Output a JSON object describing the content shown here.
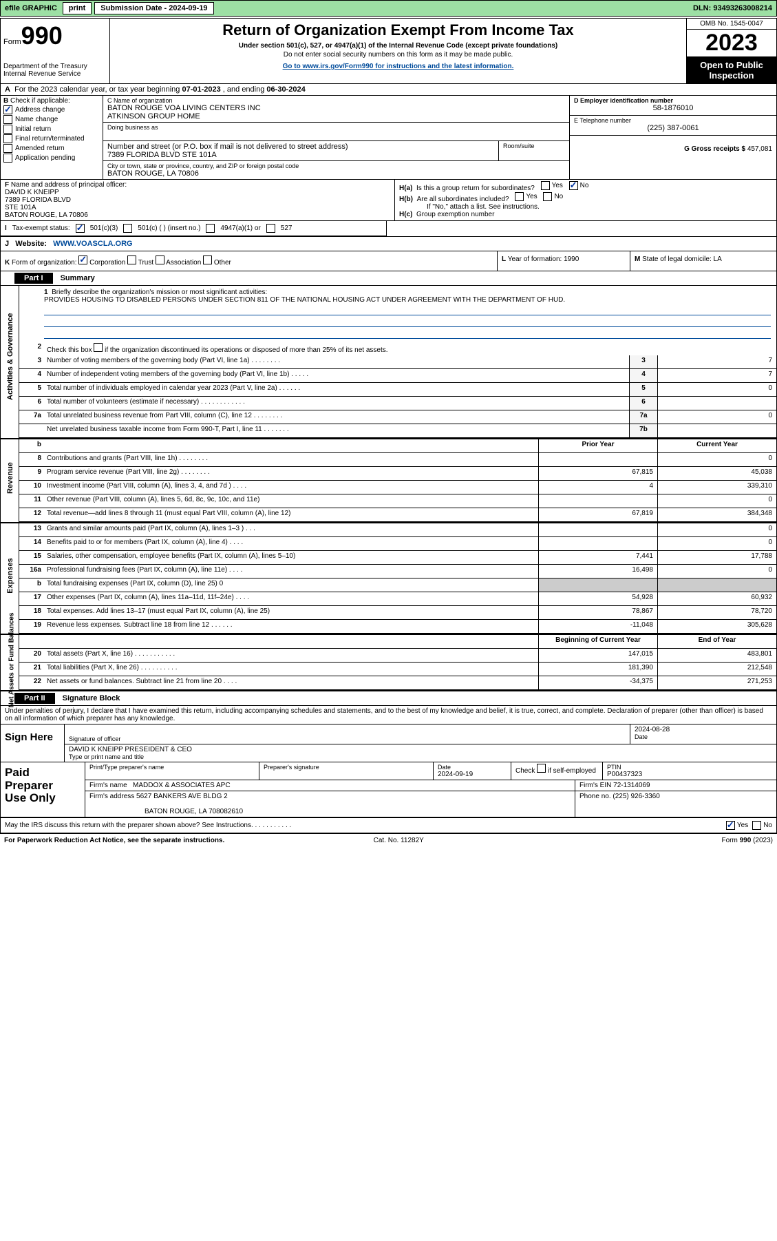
{
  "topbar": {
    "efile": "efile GRAPHIC",
    "print": "print",
    "subdate_lbl": "Submission Date - ",
    "subdate": "2024-09-19",
    "dln_lbl": "DLN: ",
    "dln": "93493263008214"
  },
  "header": {
    "form_lbl": "Form",
    "form_num": "990",
    "dept": "Department of the Treasury\nInternal Revenue Service",
    "title": "Return of Organization Exempt From Income Tax",
    "sub": "Under section 501(c), 527, or 4947(a)(1) of the Internal Revenue Code (except private foundations)",
    "sub2": "Do not enter social security numbers on this form as it may be made public.",
    "link_pre": "Go to ",
    "link": "www.irs.gov/Form990",
    "link_post": " for instructions and the latest information.",
    "omb": "OMB No. 1545-0047",
    "year": "2023",
    "inspect": "Open to Public Inspection"
  },
  "lineA": {
    "label_a": "A",
    "text": "For the 2023 calendar year, or tax year beginning ",
    "begin": "07-01-2023",
    "mid": " , and ending ",
    "end": "06-30-2024"
  },
  "colB": {
    "label": "B",
    "check_lbl": "Check if applicable:",
    "items": [
      {
        "label": "Address change",
        "checked": true
      },
      {
        "label": "Name change",
        "checked": false
      },
      {
        "label": "Initial return",
        "checked": false
      },
      {
        "label": "Final return/terminated",
        "checked": false
      },
      {
        "label": "Amended return",
        "checked": false
      },
      {
        "label": "Application pending",
        "checked": false
      }
    ]
  },
  "colC": {
    "name_lbl": "C Name of organization",
    "name1": "BATON ROUGE VOA LIVING CENTERS INC",
    "name2": "ATKINSON GROUP HOME",
    "dba_lbl": "Doing business as",
    "addr_lbl": "Number and street (or P.O. box if mail is not delivered to street address)",
    "addr": "7389 FLORIDA BLVD STE 101A",
    "room_lbl": "Room/suite",
    "city_lbl": "City or town, state or province, country, and ZIP or foreign postal code",
    "city": "BATON ROUGE, LA   70806"
  },
  "colD": {
    "ein_lbl": "D Employer identification number",
    "ein": "58-1876010",
    "tel_lbl": "E Telephone number",
    "tel": "(225) 387-0061",
    "gross_lbl": "G Gross receipts $ ",
    "gross": "457,081"
  },
  "secF": {
    "lbl": "F",
    "text": "Name and address of principal officer:",
    "name": "DAVID K KNEIPP",
    "addr1": "7389 FLORIDA BLVD",
    "addr2": "STE 101A",
    "city": "BATON ROUGE, LA   70806"
  },
  "secH": {
    "ha": "H(a)",
    "ha_text": "Is this a group return for subordinates?",
    "ha_no_checked": true,
    "hb": "H(b)",
    "hb_text": "Are all subordinates included?",
    "hb_note": "If \"No,\" attach a list. See instructions.",
    "hc": "H(c)",
    "hc_text": "Group exemption number "
  },
  "secI": {
    "lbl": "I",
    "text": "Tax-exempt status:",
    "c3": "501(c)(3)",
    "c": "501(c) (  ) (insert no.)",
    "a1": "4947(a)(1) or",
    "s527": "527"
  },
  "secJ": {
    "lbl": "J",
    "text": "Website:",
    "url": "WWW.VOASCLA.ORG"
  },
  "secK": {
    "lbl": "K",
    "text": "Form of organization:",
    "opts": [
      "Corporation",
      "Trust",
      "Association",
      "Other"
    ]
  },
  "secL": {
    "lbl": "L",
    "text": "Year of formation: ",
    "val": "1990"
  },
  "secM": {
    "lbl": "M",
    "text": "State of legal domicile: ",
    "val": "LA"
  },
  "part1": {
    "hdr": "Part I",
    "title": "Summary",
    "q1_lbl": "1",
    "q1": "Briefly describe the organization's mission or most significant activities:",
    "mission": "PROVIDES HOUSING TO DISABLED PERSONS UNDER SECTION 811 OF THE NATIONAL HOUSING ACT UNDER AGREEMENT WITH THE DEPARTMENT OF HUD.",
    "q2_lbl": "2",
    "q2": "Check this box      if the organization discontinued its operations or disposed of more than 25% of its net assets.",
    "rows_top": [
      {
        "n": "3",
        "d": "Number of voting members of the governing body (Part VI, line 1a)   .    .    .    .    .    .    .    .",
        "box": "3",
        "v": "7"
      },
      {
        "n": "4",
        "d": "Number of independent voting members of the governing body (Part VI, line 1b)   .    .    .    .    .",
        "box": "4",
        "v": "7"
      },
      {
        "n": "5",
        "d": "Total number of individuals employed in calendar year 2023 (Part V, line 2a)   .    .    .    .    .    .",
        "box": "5",
        "v": "0"
      },
      {
        "n": "6",
        "d": "Total number of volunteers (estimate if necessary)   .    .    .    .    .    .    .    .    .    .    .    .",
        "box": "6",
        "v": ""
      },
      {
        "n": "7a",
        "d": "Total unrelated business revenue from Part VIII, column (C), line 12   .    .    .    .    .    .    .    .",
        "box": "7a",
        "v": "0"
      },
      {
        "n": "",
        "d": "Net unrelated business taxable income from Form 990-T, Part I, line 11   .    .    .    .    .    .    .",
        "box": "7b",
        "v": ""
      }
    ],
    "col_hdr_b": "b",
    "col_prior": "Prior Year",
    "col_current": "Current Year",
    "revenue": [
      {
        "n": "8",
        "d": "Contributions and grants (Part VIII, line 1h)   .    .    .    .    .    .    .    .",
        "p": "",
        "c": "0"
      },
      {
        "n": "9",
        "d": "Program service revenue (Part VIII, line 2g)   .    .    .    .    .    .    .    .",
        "p": "67,815",
        "c": "45,038"
      },
      {
        "n": "10",
        "d": "Investment income (Part VIII, column (A), lines 3, 4, and 7d )   .    .    .    .",
        "p": "4",
        "c": "339,310"
      },
      {
        "n": "11",
        "d": "Other revenue (Part VIII, column (A), lines 5, 6d, 8c, 9c, 10c, and 11e)",
        "p": "",
        "c": "0"
      },
      {
        "n": "12",
        "d": "Total revenue—add lines 8 through 11 (must equal Part VIII, column (A), line 12)",
        "p": "67,819",
        "c": "384,348"
      }
    ],
    "expenses": [
      {
        "n": "13",
        "d": "Grants and similar amounts paid (Part IX, column (A), lines 1–3 )   .    .    .",
        "p": "",
        "c": "0"
      },
      {
        "n": "14",
        "d": "Benefits paid to or for members (Part IX, column (A), line 4)   .    .    .    .",
        "p": "",
        "c": "0"
      },
      {
        "n": "15",
        "d": "Salaries, other compensation, employee benefits (Part IX, column (A), lines 5–10)",
        "p": "7,441",
        "c": "17,788"
      },
      {
        "n": "16a",
        "d": "Professional fundraising fees (Part IX, column (A), line 11e)   .    .    .    .",
        "p": "16,498",
        "c": "0",
        "shade": false
      },
      {
        "n": "b",
        "d": "Total fundraising expenses (Part IX, column (D), line 25) 0",
        "p": "",
        "c": "",
        "shaded": true
      },
      {
        "n": "17",
        "d": "Other expenses (Part IX, column (A), lines 11a–11d, 11f–24e)   .    .    .    .",
        "p": "54,928",
        "c": "60,932"
      },
      {
        "n": "18",
        "d": "Total expenses. Add lines 13–17 (must equal Part IX, column (A), line 25)",
        "p": "78,867",
        "c": "78,720"
      },
      {
        "n": "19",
        "d": "Revenue less expenses. Subtract line 18 from line 12   .    .    .    .    .    .",
        "p": "-11,048",
        "c": "305,628"
      }
    ],
    "na_hdr_begin": "Beginning of Current Year",
    "na_hdr_end": "End of Year",
    "netassets": [
      {
        "n": "20",
        "d": "Total assets (Part X, line 16)   .    .    .    .    .    .    .    .    .    .    .",
        "p": "147,015",
        "c": "483,801"
      },
      {
        "n": "21",
        "d": "Total liabilities (Part X, line 26)   .    .    .    .    .    .    .    .    .    .",
        "p": "181,390",
        "c": "212,548"
      },
      {
        "n": "22",
        "d": "Net assets or fund balances. Subtract line 21 from line 20   .    .    .    .",
        "p": "-34,375",
        "c": "271,253"
      }
    ]
  },
  "vlabels": {
    "act": "Activities & Governance",
    "rev": "Revenue",
    "exp": "Expenses",
    "na": "Net Assets or Fund Balances"
  },
  "part2": {
    "hdr": "Part II",
    "title": "Signature Block",
    "perjury": "Under penalties of perjury, I declare that I have examined this return, including accompanying schedules and statements, and to the best of my knowledge and belief, it is true, correct, and complete. Declaration of preparer (other than officer) is based on all information of which preparer has any knowledge."
  },
  "sign": {
    "left": "Sign Here",
    "sig_lbl": "Signature of officer",
    "date": "2024-08-28",
    "date_lbl": "Date",
    "name": "DAVID K KNEIPP  PRESEIDENT & CEO",
    "name_lbl": "Type or print name and title"
  },
  "prep": {
    "left1": "Paid",
    "left2": "Preparer",
    "left3": "Use Only",
    "r1_c1_lbl": "Print/Type preparer's name",
    "r1_c2_lbl": "Preparer's signature",
    "r1_c3_lbl": "Date",
    "r1_c3_val": "2024-09-19",
    "r1_c4_lbl": "Check        if self-employed",
    "r1_c5_lbl": "PTIN",
    "r1_c5_val": "P00437323",
    "r2_lbl": "Firm's name",
    "r2_val": "MADDOX & ASSOCIATES APC",
    "r2_ein_lbl": "Firm's EIN ",
    "r2_ein": "72-1314069",
    "r3_lbl": "Firm's address",
    "r3_val1": "5627 BANKERS AVE BLDG 2",
    "r3_val2": "BATON ROUGE, LA   708082610",
    "r3_ph_lbl": "Phone no. ",
    "r3_ph": "(225) 926-3360"
  },
  "discuss": {
    "text": "May the IRS discuss this return with the preparer shown above? See Instructions.   .    .    .    .    .    .    .    .    .    .",
    "yes_checked": true
  },
  "footer": {
    "left": "For Paperwork Reduction Act Notice, see the separate instructions.",
    "mid": "Cat. No. 11282Y",
    "right_pre": "Form ",
    "right_form": "990",
    "right_post": " (2023)"
  }
}
